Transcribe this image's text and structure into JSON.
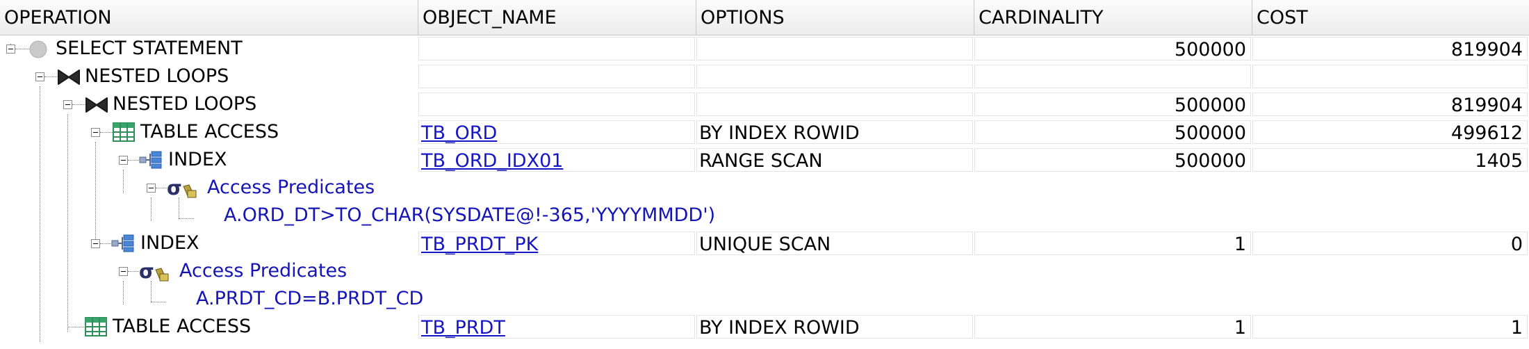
{
  "columns": [
    "OPERATION",
    "OBJECT_NAME",
    "OPTIONS",
    "CARDINALITY",
    "COST"
  ],
  "rows": [
    {
      "operation": "SELECT STATEMENT",
      "object_name": "",
      "options": "",
      "cardinality": "500000",
      "cost": "819904",
      "icon": "select-statement-icon"
    },
    {
      "operation": "NESTED LOOPS",
      "object_name": "",
      "options": "",
      "cardinality": "",
      "cost": "",
      "icon": "nested-loops-icon"
    },
    {
      "operation": "NESTED LOOPS",
      "object_name": "",
      "options": "",
      "cardinality": "500000",
      "cost": "819904",
      "icon": "nested-loops-icon"
    },
    {
      "operation": "TABLE ACCESS",
      "object_name": "TB_ORD",
      "options": "BY INDEX ROWID",
      "cardinality": "500000",
      "cost": "499612",
      "icon": "table-access-icon"
    },
    {
      "operation": "INDEX",
      "object_name": "TB_ORD_IDX01",
      "options": "RANGE SCAN",
      "cardinality": "500000",
      "cost": "1405",
      "icon": "index-icon"
    },
    {
      "operation": "Access Predicates",
      "icon": "access-predicates-icon"
    },
    {
      "operation": "A.ORD_DT>TO_CHAR(SYSDATE@!-365,'YYYYMMDD')"
    },
    {
      "operation": "INDEX",
      "object_name": "TB_PRDT_PK",
      "options": "UNIQUE SCAN",
      "cardinality": "1",
      "cost": "0",
      "icon": "index-icon"
    },
    {
      "operation": "Access Predicates",
      "icon": "access-predicates-icon"
    },
    {
      "operation": "A.PRDT_CD=B.PRDT_CD"
    },
    {
      "operation": "TABLE ACCESS",
      "object_name": "TB_PRDT",
      "options": "BY INDEX ROWID",
      "cardinality": "1",
      "cost": "1",
      "icon": "table-access-icon"
    }
  ],
  "colors": {
    "link": "#1616c8",
    "predicate": "#1414b8",
    "header_bg": "#ececec",
    "grid": "#e3e3e3"
  }
}
